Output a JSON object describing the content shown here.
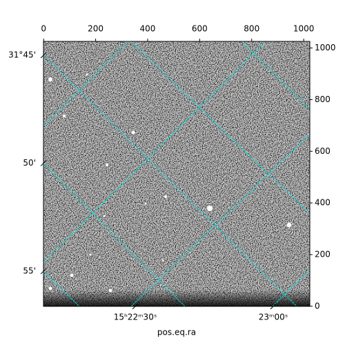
{
  "chart_data": {
    "type": "image",
    "xlabel": "pos.eq.ra",
    "xlim": [
      -0.5,
      1023.5
    ],
    "xticks": [
      0,
      200,
      400,
      600,
      800,
      1000
    ],
    "ylim": [
      -0.5,
      1025.5
    ],
    "yticks": [
      0,
      200,
      400,
      600,
      800,
      1000
    ],
    "ra_lim": [
      15.369458,
      15.385542
    ],
    "ra_ticks": [
      {
        "value": 15.375,
        "label": "15ʰ22ᵐ30ˢ"
      },
      {
        "value": 15.383333,
        "label": "23ᵐ00ˢ"
      }
    ],
    "dec_lim": [
      31.9438,
      31.7393
    ],
    "dec_ticks": [
      {
        "value": 31.75,
        "label": "31°45'"
      },
      {
        "value": 31.833333,
        "label": "50'"
      },
      {
        "value": 31.916667,
        "label": "55'"
      }
    ],
    "grid_color": "#00e5e5"
  }
}
